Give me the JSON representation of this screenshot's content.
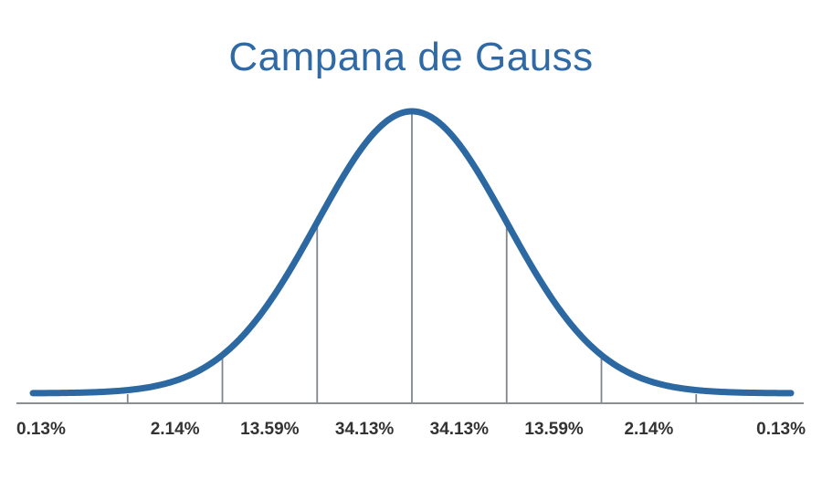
{
  "chart_data": {
    "type": "line",
    "title": "Campana de Gauss",
    "xlabel": "",
    "ylabel": "",
    "distribution": "normal",
    "mean": 0,
    "std_dev": 1,
    "xlim": [
      -4,
      4
    ],
    "boundaries": [
      -3,
      -2,
      -1,
      0,
      1,
      2,
      3
    ],
    "segments": [
      {
        "from": -4,
        "to": -3,
        "label": "0.13%",
        "value": 0.13
      },
      {
        "from": -3,
        "to": -2,
        "label": "2.14%",
        "value": 2.14
      },
      {
        "from": -2,
        "to": -1,
        "label": "13.59%",
        "value": 13.59
      },
      {
        "from": -1,
        "to": 0,
        "label": "34.13%",
        "value": 34.13
      },
      {
        "from": 0,
        "to": 1,
        "label": "34.13%",
        "value": 34.13
      },
      {
        "from": 1,
        "to": 2,
        "label": "13.59%",
        "value": 13.59
      },
      {
        "from": 2,
        "to": 3,
        "label": "2.14%",
        "value": 2.14
      },
      {
        "from": 3,
        "to": 4,
        "label": "0.13%",
        "value": 0.13
      }
    ],
    "grid": false,
    "legend": "none"
  },
  "colors": {
    "title": "#2f6aa6",
    "curve": "#2c68a1",
    "axis": "#8a8f96",
    "divider": "#80858c",
    "label": "#333333"
  }
}
